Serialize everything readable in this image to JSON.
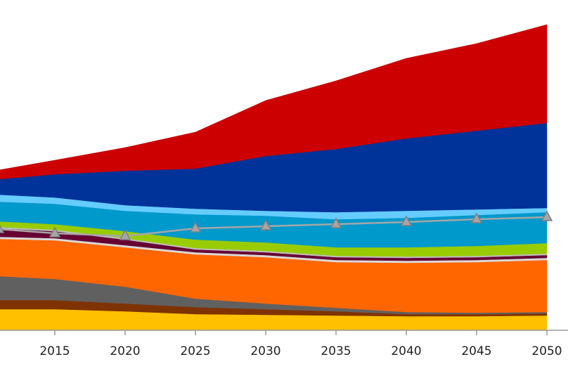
{
  "chart_data": {
    "type": "stacked_area",
    "x": [
      2011,
      2015,
      2020,
      2025,
      2030,
      2035,
      2040,
      2045,
      2050
    ],
    "xlim": [
      2011.1,
      2051.1
    ],
    "xticks": [
      2015,
      2020,
      2025,
      2030,
      2035,
      2040,
      2045,
      2050
    ],
    "ylim": [
      0,
      470
    ],
    "series": [
      {
        "color": "#ffc000",
        "values": [
          30,
          30,
          27,
          23,
          22,
          21,
          20,
          20,
          21
        ]
      },
      {
        "color": "#7f3300",
        "values": [
          13,
          13,
          11,
          10,
          8,
          6,
          3,
          3,
          3
        ]
      },
      {
        "color": "#606060",
        "values": [
          34,
          30,
          24,
          12,
          8,
          5,
          3,
          2,
          2
        ]
      },
      {
        "color": "#ff6600",
        "values": [
          53,
          55,
          56,
          63,
          66,
          65,
          70,
          72,
          74
        ]
      },
      {
        "color": "#d9d9d9",
        "values": [
          3,
          3,
          3,
          3,
          3,
          3,
          3,
          3,
          3
        ]
      },
      {
        "color": "#660033",
        "values": [
          12,
          10,
          8,
          4,
          4,
          4,
          4,
          4,
          4
        ]
      },
      {
        "color": "#bfbfbf",
        "values": [
          2,
          2,
          2,
          2,
          2,
          2,
          2,
          2,
          2
        ]
      },
      {
        "color": "#99cc00",
        "values": [
          8,
          8,
          10,
          12,
          12,
          12,
          13,
          14,
          15
        ]
      },
      {
        "color": "#0099cc",
        "values": [
          28,
          29,
          29,
          36,
          38,
          40,
          42,
          44,
          44
        ]
      },
      {
        "color": "#66ccff",
        "values": [
          10,
          9,
          8,
          8,
          7,
          10,
          10,
          8,
          6
        ]
      },
      {
        "color": "#003399",
        "values": [
          22,
          33,
          49,
          57,
          78,
          90,
          103,
          112,
          121
        ]
      },
      {
        "color": "#cc0000",
        "values": [
          13,
          20,
          33,
          52,
          79,
          97,
          114,
          124,
          140
        ]
      }
    ],
    "line_series": [
      {
        "color": "#a6a6a6",
        "values": [
          144,
          138,
          134,
          145,
          148,
          151,
          154,
          158,
          161
        ]
      }
    ]
  }
}
